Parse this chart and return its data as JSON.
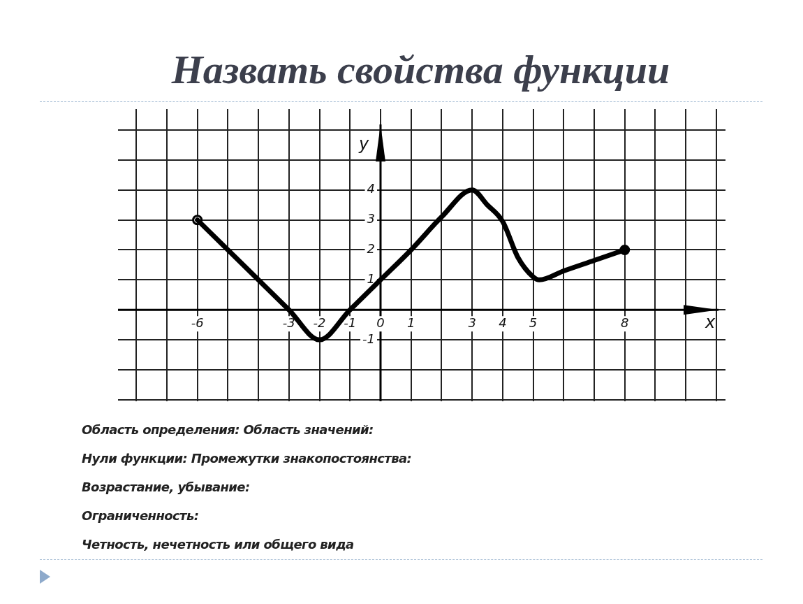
{
  "chart_data": {
    "type": "line",
    "title": "Назвать свойства функции",
    "xlabel": "x",
    "ylabel": "y",
    "x": [
      -6,
      -3,
      -2,
      -1,
      0,
      1,
      2,
      3,
      3.5,
      4,
      4.5,
      5,
      5.2,
      6,
      7,
      8
    ],
    "series": [
      {
        "color": "#000000",
        "marker": "none",
        "values": [
          3,
          0,
          -1,
          0,
          1,
          2,
          3.1,
          4,
          3.5,
          2.95,
          1.75,
          1.1,
          1,
          1.3,
          1.65,
          2
        ]
      },
      {
        "type": "scatter",
        "x": [
          -6,
          8
        ],
        "color": "#000000",
        "colors": [
          "#ffffff",
          "#000000"
        ],
        "marker": "circle",
        "values": [
          3,
          2
        ]
      }
    ],
    "xlim": [
      -8.6,
      11.3
    ],
    "xticks": [
      {
        "value": -8,
        "label": null
      },
      {
        "value": -7,
        "label": null
      },
      -6,
      {
        "value": -5,
        "label": null
      },
      {
        "value": -4,
        "label": null
      },
      -3,
      -2,
      -1,
      0,
      1,
      {
        "value": 2,
        "label": null
      },
      3,
      4,
      5,
      {
        "value": 6,
        "label": null
      },
      {
        "value": 7,
        "label": null
      },
      8,
      {
        "value": 9,
        "label": null
      },
      {
        "value": 10,
        "label": null
      },
      {
        "value": 11,
        "label": null
      }
    ],
    "ylim": [
      -3.05,
      6.7
    ],
    "yticks": [
      {
        "value": -3,
        "label": null
      },
      {
        "value": -2,
        "label": null
      },
      -1,
      {
        "value": 0,
        "label": null
      },
      1,
      2,
      3,
      4,
      {
        "value": 5,
        "label": null
      },
      {
        "value": 6,
        "label": null
      }
    ],
    "grid": true,
    "legend": false,
    "line_style": "solid",
    "annotations": [
      "Область определения:  Область значений:",
      "Нули функции: Промежутки знакопостоянства:",
      "Возрастание, убывание:",
      "Ограниченность:",
      "Четность, нечетность или общего вида"
    ]
  }
}
